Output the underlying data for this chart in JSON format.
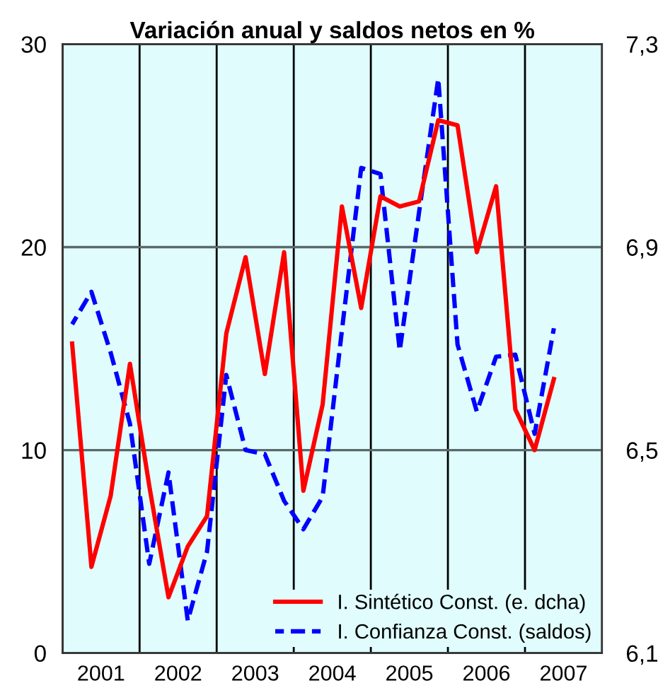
{
  "chart_data": {
    "type": "line",
    "title": "Variación anual y saldos netos en %",
    "x": [
      2001.125,
      2001.375,
      2001.625,
      2001.875,
      2002.125,
      2002.375,
      2002.625,
      2002.875,
      2003.125,
      2003.375,
      2003.625,
      2003.875,
      2004.125,
      2004.375,
      2004.625,
      2004.875,
      2005.125,
      2005.375,
      2005.625,
      2005.875,
      2006.125,
      2006.375,
      2006.625,
      2006.875,
      2007.125,
      2007.375
    ],
    "series": [
      {
        "name": "I. Sintético Const. (e. dcha)",
        "color": "#ff0000",
        "axis": "y2",
        "line_style": "solid",
        "values": [
          6.71,
          6.27,
          6.41,
          6.67,
          6.43,
          6.21,
          6.31,
          6.37,
          6.73,
          6.88,
          6.65,
          6.89,
          6.42,
          6.59,
          6.98,
          6.78,
          7.0,
          6.98,
          6.99,
          7.15,
          7.14,
          6.89,
          7.02,
          6.58,
          6.5,
          6.64
        ]
      },
      {
        "name": "I. Confianza Const. (saldos)",
        "color": "#0000ff",
        "axis": "y",
        "line_style": "dashed",
        "values": [
          16.2,
          17.8,
          14.8,
          11.3,
          4.4,
          8.9,
          1.6,
          5.0,
          13.7,
          10.0,
          9.8,
          7.5,
          6.1,
          7.7,
          15.9,
          23.9,
          23.6,
          14.9,
          21.7,
          28.3,
          15.2,
          11.9,
          14.6,
          14.7,
          10.8,
          16.0
        ]
      }
    ],
    "xlim": [
      2001,
      2008
    ],
    "xticks": [
      {
        "value": 2001,
        "label": null
      },
      {
        "value": 2001.5,
        "label": "2001"
      },
      {
        "value": 2002,
        "label": null
      },
      {
        "value": 2002.5,
        "label": "2002"
      },
      {
        "value": 2003,
        "label": null
      },
      {
        "value": 2003.5,
        "label": "2003"
      },
      {
        "value": 2004,
        "label": null
      },
      {
        "value": 2004.5,
        "label": "2004"
      },
      {
        "value": 2005,
        "label": null
      },
      {
        "value": 2005.5,
        "label": "2005"
      },
      {
        "value": 2006,
        "label": null
      },
      {
        "value": 2006.5,
        "label": "2006"
      },
      {
        "value": 2007,
        "label": null
      },
      {
        "value": 2007.5,
        "label": "2007"
      },
      {
        "value": 2008,
        "label": null
      }
    ],
    "ylim": [
      0,
      30
    ],
    "yticks": [
      0,
      10,
      20,
      30
    ],
    "y2lim": [
      6.1,
      7.3
    ],
    "y2ticks": [
      {
        "value": 6.1,
        "label": "6,1"
      },
      {
        "value": 6.5,
        "label": "6,5"
      },
      {
        "value": 6.9,
        "label": "6,9"
      },
      {
        "value": 7.3,
        "label": "7,3"
      }
    ],
    "grid": true,
    "legend": "bottom right"
  }
}
